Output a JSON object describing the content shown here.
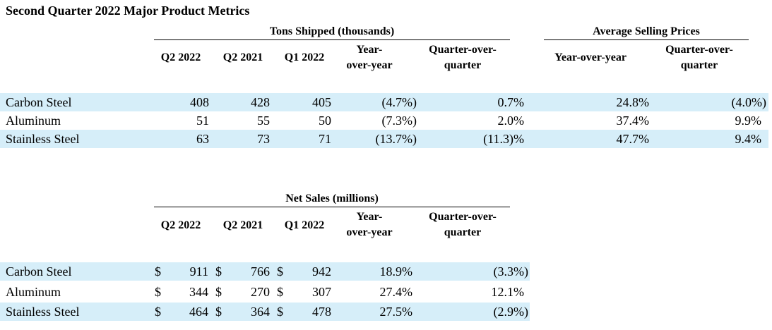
{
  "title": "Second Quarter 2022 Major Product Metrics",
  "tons_table": {
    "group_left": "Tons Shipped (thousands)",
    "group_right": "Average Selling Prices",
    "headers": {
      "q2_2022": "Q2 2022",
      "q2_2021": "Q2 2021",
      "q1_2022": "Q1 2022",
      "yoy_line1": "Year-",
      "yoy_line2": "over-year",
      "qoq_line1": "Quarter-over-",
      "qoq_line2": "quarter",
      "asp_yoy": "Year-over-year",
      "asp_qoq_line1": "Quarter-over-",
      "asp_qoq_line2": "quarter"
    },
    "rows": [
      {
        "product": "Carbon Steel",
        "q2_2022": "408",
        "q2_2021": "428",
        "q1_2022": "405",
        "yoy": "(4.7%)",
        "qoq": "0.7%",
        "asp_yoy": "24.8%",
        "asp_qoq": "(4.0%)",
        "shaded": true
      },
      {
        "product": "Aluminum",
        "q2_2022": "51",
        "q2_2021": "55",
        "q1_2022": "50",
        "yoy": "(7.3%)",
        "qoq": "2.0%",
        "asp_yoy": "37.4%",
        "asp_qoq": "9.9%",
        "shaded": false
      },
      {
        "product": "Stainless Steel",
        "q2_2022": "63",
        "q2_2021": "73",
        "q1_2022": "71",
        "yoy": "(13.7%)",
        "qoq": "(11.3)%",
        "asp_yoy": "47.7%",
        "asp_qoq": "9.4%",
        "shaded": true
      }
    ]
  },
  "sales_table": {
    "group": "Net Sales (millions)",
    "headers": {
      "q2_2022": "Q2 2022",
      "q2_2021": "Q2 2021",
      "q1_2022": "Q1 2022",
      "yoy_line1": "Year-",
      "yoy_line2": "over-year",
      "qoq_line1": "Quarter-over-",
      "qoq_line2": "quarter"
    },
    "currency": "$",
    "rows": [
      {
        "product": "Carbon Steel",
        "q2_2022": "911",
        "q2_2021": "766",
        "q1_2022": "942",
        "yoy": "18.9%",
        "qoq": "(3.3%)",
        "shaded": true
      },
      {
        "product": "Aluminum",
        "q2_2022": "344",
        "q2_2021": "270",
        "q1_2022": "307",
        "yoy": "27.4%",
        "qoq": "12.1%",
        "shaded": false
      },
      {
        "product": "Stainless Steel",
        "q2_2022": "464",
        "q2_2021": "364",
        "q1_2022": "478",
        "yoy": "27.5%",
        "qoq": "(2.9%)",
        "shaded": true
      }
    ]
  }
}
